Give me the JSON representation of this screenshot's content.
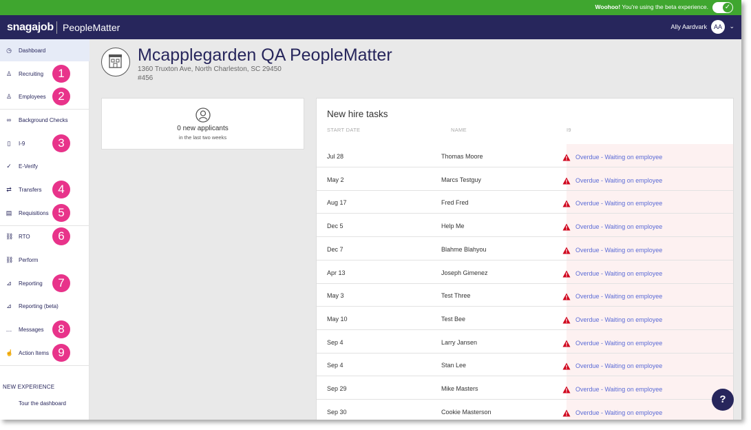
{
  "beta": {
    "strong": "Woohoo!",
    "text": " You're using the beta experience.",
    "toggle_icon": "check-icon"
  },
  "header": {
    "brand": "snagajob",
    "product": "PeopleMatter",
    "user_name": "Ally Aardvark",
    "avatar_initials": "AA",
    "caret": "⌄"
  },
  "sidebar": {
    "items": [
      {
        "label": "Dashboard",
        "icon": "gauge-icon",
        "glyph": "◷",
        "active": true
      },
      {
        "label": "Recruiting",
        "icon": "person-add-icon",
        "glyph": "♙",
        "badge": "1"
      },
      {
        "label": "Employees",
        "icon": "people-icon",
        "glyph": "♙",
        "badge": "2"
      },
      {
        "label": "Background Checks",
        "icon": "binoculars-icon",
        "glyph": "∞"
      },
      {
        "label": "I-9",
        "icon": "document-icon",
        "glyph": "▯",
        "badge": "3"
      },
      {
        "label": "E-Verify",
        "icon": "check-circle-icon",
        "glyph": "✓"
      },
      {
        "label": "Transfers",
        "icon": "transfer-icon",
        "glyph": "⇄",
        "badge": "4"
      },
      {
        "label": "Requisitions",
        "icon": "clipboard-icon",
        "glyph": "▤",
        "badge": "5"
      },
      {
        "label": "RTO",
        "icon": "link-icon",
        "glyph": "⛓",
        "badge": "6"
      },
      {
        "label": "Perform",
        "icon": "link-icon",
        "glyph": "⛓"
      },
      {
        "label": "Reporting",
        "icon": "chart-icon",
        "glyph": "⊿",
        "badge": "7"
      },
      {
        "label": "Reporting (beta)",
        "icon": "chart-icon",
        "glyph": "⊿"
      },
      {
        "label": "Messages",
        "icon": "speech-bubble-icon",
        "glyph": "…",
        "badge": "8"
      },
      {
        "label": "Action Items",
        "icon": "hand-icon",
        "glyph": "☝",
        "badge": "9"
      }
    ],
    "new_experience": "NEW EXPERIENCE",
    "tour": "Tour the dashboard"
  },
  "location": {
    "title": "Mcapplegarden QA PeopleMatter",
    "address": "1360 Truxton Ave, North Charleston, SC 29450",
    "number": "#456"
  },
  "applicants": {
    "count_text": "0 new applicants",
    "subtext": "in the last two weeks"
  },
  "tasks": {
    "title": "New hire tasks",
    "columns": [
      "START DATE",
      "NAME",
      "I9"
    ],
    "rows": [
      {
        "date": "Jul 28",
        "name": "Thomas Moore",
        "status": "Overdue - Waiting on employee"
      },
      {
        "date": "May 2",
        "name": "Marcs Testguy",
        "status": "Overdue - Waiting on employee"
      },
      {
        "date": "Aug 17",
        "name": "Fred Fred",
        "status": "Overdue - Waiting on employee"
      },
      {
        "date": "Dec 5",
        "name": "Help Me",
        "status": "Overdue - Waiting on employee"
      },
      {
        "date": "Dec 7",
        "name": "Blahme Blahyou",
        "status": "Overdue - Waiting on employee"
      },
      {
        "date": "Apr 13",
        "name": "Joseph Gimenez",
        "status": "Overdue - Waiting on employee"
      },
      {
        "date": "May 3",
        "name": "Test Three",
        "status": "Overdue - Waiting on employee"
      },
      {
        "date": "May 10",
        "name": "Test Bee",
        "status": "Overdue - Waiting on employee"
      },
      {
        "date": "Sep 4",
        "name": "Larry Jansen",
        "status": "Overdue - Waiting on employee"
      },
      {
        "date": "Sep 4",
        "name": "Stan Lee",
        "status": "Overdue - Waiting on employee"
      },
      {
        "date": "Sep 29",
        "name": "Mike Masters",
        "status": "Overdue - Waiting on employee"
      },
      {
        "date": "Sep 30",
        "name": "Cookie Masterson",
        "status": "Overdue - Waiting on employee"
      }
    ]
  },
  "help": {
    "glyph": "?"
  },
  "colors": {
    "beta_green": "#3fa62f",
    "navy": "#27265c",
    "badge_pink": "#e8338a",
    "status_link": "#5b6bd6",
    "warning_red": "#d0021b",
    "i9_highlight": "#fdf1f1"
  }
}
